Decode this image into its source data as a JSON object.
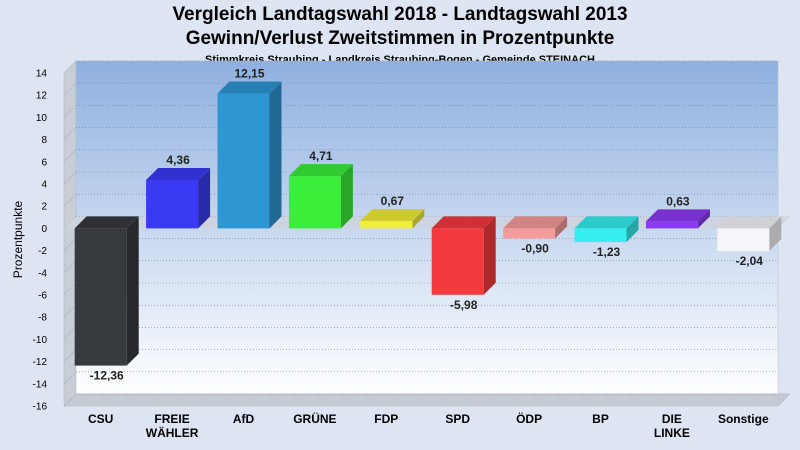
{
  "chart_data": {
    "type": "bar",
    "title": "Vergleich Landtagswahl 2018 - Landtagswahl 2013",
    "subtitle": "Gewinn/Verlust Zweitstimmen in Prozentpunkte",
    "subsubtitle": "Stimmkreis Straubing - Landkreis Straubing-Bogen - Gemeinde STEINACH",
    "ylabel": "Prozentpunkte",
    "xlabel": "",
    "ylim": [
      -16,
      14
    ],
    "yticks": [
      14,
      12,
      10,
      8,
      6,
      4,
      2,
      0,
      -2,
      -4,
      -6,
      -8,
      -10,
      -12,
      -14,
      -16
    ],
    "grid": true,
    "categories": [
      [
        "CSU"
      ],
      [
        "FREIE",
        "WÄHLER"
      ],
      [
        "AfD"
      ],
      [
        "GRÜNE"
      ],
      [
        "FDP"
      ],
      [
        "SPD"
      ],
      [
        "ÖDP"
      ],
      [
        "BP"
      ],
      [
        "DIE",
        "LINKE"
      ],
      [
        "Sonstige"
      ]
    ],
    "values": [
      -12.36,
      4.36,
      12.15,
      4.71,
      0.67,
      -5.98,
      -0.9,
      -1.23,
      0.63,
      -2.04
    ],
    "value_labels": [
      "-12,36",
      "4,36",
      "12,15",
      "4,71",
      "0,67",
      "-5,98",
      "-0,90",
      "-1,23",
      "0,63",
      "-2,04"
    ],
    "colors": [
      "#36393d",
      "#3a3af5",
      "#2e96d3",
      "#3aee3a",
      "#f2ef3a",
      "#f53a3f",
      "#f59b9b",
      "#35eef0",
      "#8c3af2",
      "#f5f5fa"
    ]
  }
}
